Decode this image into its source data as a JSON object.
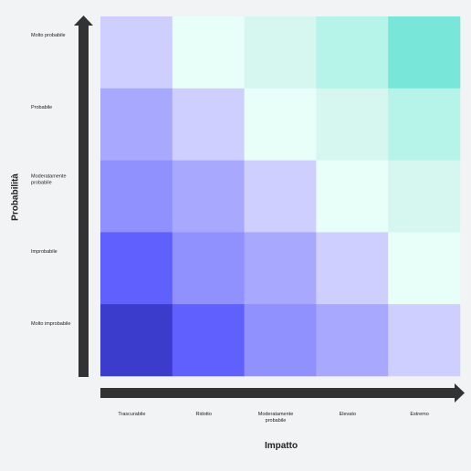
{
  "y_axis": {
    "title": "Probabilità",
    "labels": [
      "Molto probabile",
      "Probabile",
      "Moderatamente probabile",
      "Improbabile",
      "Molto improbabile"
    ]
  },
  "x_axis": {
    "title": "Impatto",
    "labels": [
      "Trascurabile",
      "Ridotto",
      "Moderatamente probabile",
      "Elevato",
      "Estremo"
    ]
  },
  "matrix": {
    "colors": [
      [
        "#cfcfff",
        "#e8fff9",
        "#d6f7f0",
        "#b6f3e9",
        "#78e6d8"
      ],
      [
        "#a8a8ff",
        "#cfcfff",
        "#e8fff9",
        "#d6f7f0",
        "#b6f3e9"
      ],
      [
        "#9090ff",
        "#a8a8ff",
        "#cfcfff",
        "#e8fff9",
        "#d6f7f0"
      ],
      [
        "#6060ff",
        "#9090ff",
        "#a8a8ff",
        "#cfcfff",
        "#e8fff9"
      ],
      [
        "#3c3ccc",
        "#6060ff",
        "#9090ff",
        "#a8a8ff",
        "#cfcfff"
      ]
    ]
  }
}
